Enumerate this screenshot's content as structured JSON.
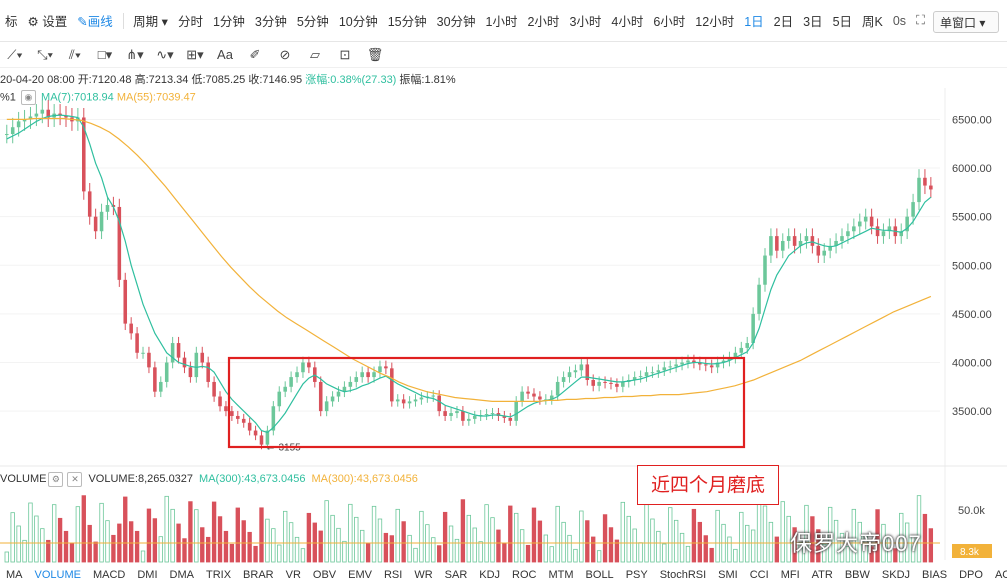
{
  "colors": {
    "up": "#6cc79a",
    "down": "#d8515b",
    "ma7": "#2fbf9f",
    "ma55": "#f2b23a",
    "accent": "#1e88e5",
    "box": "#e02020"
  },
  "topbar": {
    "left": [
      "标",
      "设置",
      "画线"
    ],
    "period_label": "周期",
    "intervals": [
      "分时",
      "1分钟",
      "3分钟",
      "5分钟",
      "10分钟",
      "15分钟",
      "30分钟",
      "1小时",
      "2小时",
      "3小时",
      "4小时",
      "6小时",
      "12小时",
      "1日",
      "2日",
      "3日",
      "5日",
      "周K"
    ],
    "active_interval": "1日",
    "right": [
      "0s"
    ],
    "window_mode": "单窗口"
  },
  "toolbar": {
    "tools": [
      "line-tool-icon",
      "ray-tool-icon",
      "parallel-tool-icon",
      "rect-tool-icon",
      "fib-tool-icon",
      "wave-tool-icon",
      "grid-tool-icon",
      "text-tool-icon",
      "brush-tool-icon",
      "magnet-tool-icon",
      "ruler-tool-icon",
      "lock-tool-icon",
      "trash-tool-icon"
    ],
    "text_tool_label": "Aa"
  },
  "info": {
    "date": "20-04-20 08:00",
    "open": "开:7120.48",
    "high": "高:7213.34",
    "low": "低:7085.25",
    "close": "收:7146.95",
    "change": "涨幅:0.38%(27.33)",
    "amplitude": "振幅:1.81%"
  },
  "ma": {
    "prefix": "%1",
    "ma7": "MA(7):7018.94",
    "ma55": "MA(55):7039.47"
  },
  "chart_data": {
    "type": "candlestick",
    "y_axis": {
      "ticks": [
        6500,
        6000,
        5500,
        5000,
        4500,
        4000,
        3500
      ],
      "labels": [
        "6500.00",
        "6000.00",
        "5500.00",
        "5000.00",
        "4500.00",
        "4000.00",
        "3500.00"
      ],
      "range": [
        3100,
        6700
      ]
    },
    "low_annotation": "3155",
    "box_annotation": "近四个月磨底",
    "closes": [
      6350,
      6420,
      6480,
      6500,
      6530,
      6560,
      6600,
      6520,
      6560,
      6540,
      6520,
      6480,
      6520,
      5760,
      5500,
      5350,
      5550,
      5620,
      5600,
      4850,
      4400,
      4300,
      4100,
      4100,
      3950,
      3700,
      3800,
      4000,
      4200,
      4050,
      3950,
      3850,
      4100,
      4000,
      3800,
      3650,
      3550,
      3500,
      3450,
      3420,
      3380,
      3300,
      3250,
      3155,
      3300,
      3550,
      3700,
      3750,
      3850,
      3900,
      4000,
      3950,
      3800,
      3500,
      3600,
      3650,
      3700,
      3750,
      3800,
      3850,
      3900,
      3850,
      3900,
      3960,
      3940,
      3600,
      3620,
      3580,
      3600,
      3620,
      3640,
      3650,
      3660,
      3500,
      3450,
      3480,
      3500,
      3400,
      3420,
      3450,
      3460,
      3470,
      3480,
      3450,
      3430,
      3400,
      3600,
      3700,
      3680,
      3650,
      3620,
      3620,
      3660,
      3800,
      3850,
      3900,
      3920,
      3980,
      3820,
      3760,
      3800,
      3790,
      3780,
      3750,
      3800,
      3820,
      3850,
      3860,
      3900,
      3900,
      3920,
      3950,
      3960,
      3980,
      4000,
      4020,
      4000,
      3980,
      3970,
      3950,
      4000,
      4020,
      4050,
      4100,
      4150,
      4200,
      4500,
      4800,
      5100,
      5300,
      5150,
      5250,
      5300,
      5200,
      5250,
      5300,
      5200,
      5100,
      5150,
      5200,
      5250,
      5300,
      5350,
      5400,
      5450,
      5500,
      5400,
      5300,
      5350,
      5400,
      5300,
      5350,
      5500,
      5650,
      5900,
      5820,
      5780
    ],
    "ma7": [
      6300,
      6330,
      6360,
      6400,
      6440,
      6480,
      6510,
      6530,
      6540,
      6545,
      6540,
      6530,
      6520,
      6420,
      6250,
      6050,
      5900,
      5700,
      5600,
      5450,
      5250,
      5000,
      4800,
      4600,
      4450,
      4300,
      4200,
      4100,
      4050,
      4000,
      3980,
      3960,
      3950,
      3960,
      3950,
      3900,
      3800,
      3700,
      3620,
      3560,
      3500,
      3440,
      3380,
      3300,
      3280,
      3330,
      3400,
      3480,
      3580,
      3680,
      3780,
      3840,
      3870,
      3830,
      3780,
      3750,
      3720,
      3700,
      3710,
      3730,
      3760,
      3780,
      3810,
      3840,
      3860,
      3820,
      3780,
      3750,
      3720,
      3690,
      3660,
      3640,
      3630,
      3600,
      3560,
      3540,
      3520,
      3500,
      3480,
      3460,
      3450,
      3450,
      3460,
      3460,
      3450,
      3440,
      3470,
      3510,
      3550,
      3580,
      3600,
      3610,
      3620,
      3650,
      3700,
      3750,
      3800,
      3850,
      3850,
      3840,
      3830,
      3820,
      3810,
      3800,
      3800,
      3810,
      3820,
      3830,
      3850,
      3870,
      3890,
      3910,
      3930,
      3950,
      3970,
      3990,
      4000,
      4000,
      3990,
      3985,
      3990,
      4000,
      4020,
      4050,
      4080,
      4110,
      4200,
      4350,
      4550,
      4750,
      4900,
      5000,
      5100,
      5150,
      5200,
      5230,
      5240,
      5220,
      5200,
      5190,
      5200,
      5230,
      5260,
      5290,
      5320,
      5350,
      5380,
      5370,
      5360,
      5360,
      5350,
      5340,
      5380,
      5450,
      5550,
      5650,
      5700
    ],
    "ma55": [
      6500,
      6500,
      6500,
      6510,
      6510,
      6510,
      6510,
      6500,
      6490,
      6460,
      6420,
      6370,
      6300,
      6220,
      6130,
      6030,
      5920,
      5810,
      5690,
      5570,
      5450,
      5330,
      5210,
      5090,
      4980,
      4880,
      4780,
      4690,
      4610,
      4530,
      4460,
      4400,
      4340,
      4280,
      4220,
      4160,
      4100,
      4040,
      3990,
      3940,
      3890,
      3850,
      3800,
      3760,
      3730,
      3700,
      3680,
      3660,
      3640,
      3630,
      3620,
      3610,
      3600,
      3600,
      3600,
      3600,
      3600,
      3600,
      3610,
      3610,
      3620,
      3620,
      3630,
      3630,
      3640,
      3640,
      3650,
      3650,
      3660,
      3660,
      3670,
      3670,
      3670,
      3680,
      3690,
      3700,
      3720,
      3740,
      3760,
      3790,
      3820,
      3860,
      3900,
      3940,
      3980,
      4020,
      4070,
      4120,
      4170,
      4220,
      4270,
      4320,
      4370,
      4420,
      4470,
      4520,
      4560,
      4600,
      4640,
      4680
    ]
  },
  "volume": {
    "label": "VOLUME",
    "value": "VOLUME:8,265.0327",
    "ma1": "MA(300):43,673.0456",
    "ma2": "MA(300):43,673.0456",
    "axis_label": "50.0k",
    "current": "8.3k"
  },
  "bottom_tabs": [
    "MA",
    "VOLUME",
    "MACD",
    "DMI",
    "DMA",
    "TRIX",
    "BRAR",
    "VR",
    "OBV",
    "EMV",
    "RSI",
    "WR",
    "SAR",
    "KDJ",
    "ROC",
    "MTM",
    "BOLL",
    "PSY",
    "StochRSI",
    "SMI",
    "CCI",
    "MFI",
    "ATR",
    "BBW",
    "SKDJ",
    "BIAS",
    "DPO",
    "AO"
  ],
  "active_tab": "VOLUME",
  "watermark": "保罗大帝007"
}
